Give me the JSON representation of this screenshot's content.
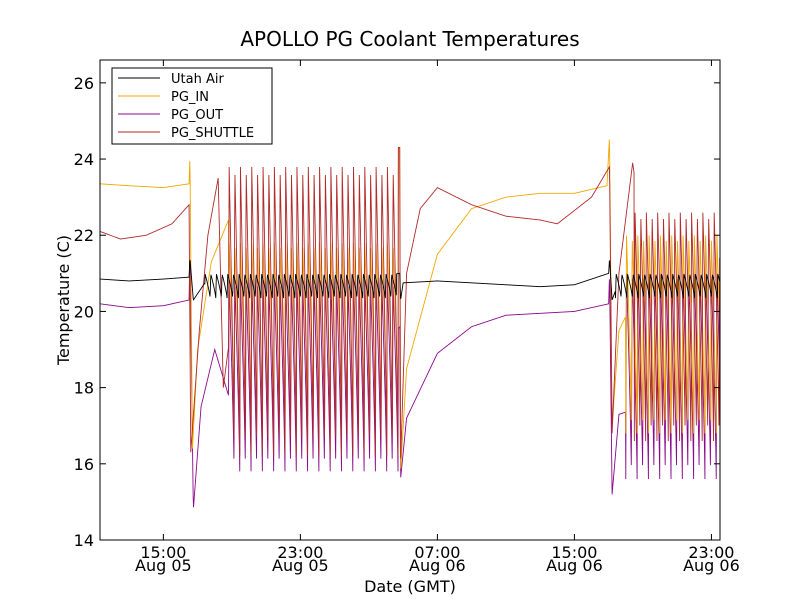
{
  "chart_data": {
    "type": "line",
    "title": "APOLLO PG Coolant Temperatures",
    "xlabel": "Date (GMT)",
    "ylabel": "Temperature (C)",
    "xlim_hours": [
      11.3,
      47.5
    ],
    "ylim": [
      14,
      26.6
    ],
    "y_ticks": [
      14,
      16,
      18,
      20,
      22,
      24,
      26
    ],
    "x_ticks": [
      {
        "hour": 15,
        "time": "15:00",
        "date": "Aug 05"
      },
      {
        "hour": 23,
        "time": "23:00",
        "date": "Aug 05"
      },
      {
        "hour": 31,
        "time": "07:00",
        "date": "Aug 06"
      },
      {
        "hour": 39,
        "time": "15:00",
        "date": "Aug 06"
      },
      {
        "hour": 47,
        "time": "23:00",
        "date": "Aug 06"
      }
    ],
    "x_hour_reference": "hours since Aug 05 00:00 GMT",
    "legend_position": "top-left",
    "grid": false,
    "colors": {
      "utah_air": "#000000",
      "pg_in": "#f0a800",
      "pg_out": "#8b0a8c",
      "pg_shuttle": "#b22a2a"
    },
    "series": [
      {
        "name": "Utah Air",
        "key": "utah_air",
        "points": [
          [
            11.3,
            20.85
          ],
          [
            13,
            20.8
          ],
          [
            15,
            20.85
          ],
          [
            16.5,
            20.9
          ],
          [
            16.55,
            21.4
          ],
          [
            16.75,
            20.3
          ],
          [
            17.5,
            20.8
          ],
          [
            18.8,
            20.95
          ],
          [
            20,
            20.9
          ],
          [
            22,
            20.9
          ],
          [
            24,
            20.9
          ],
          [
            26,
            20.9
          ],
          [
            28,
            20.95
          ],
          [
            28.8,
            21.0
          ],
          [
            28.85,
            20.3
          ],
          [
            29,
            20.75
          ],
          [
            31,
            20.8
          ],
          [
            33,
            20.75
          ],
          [
            35,
            20.7
          ],
          [
            37,
            20.65
          ],
          [
            39,
            20.7
          ],
          [
            41,
            21.0
          ],
          [
            41.05,
            21.4
          ],
          [
            41.2,
            20.3
          ],
          [
            41.6,
            20.8
          ],
          [
            43,
            20.95
          ],
          [
            45,
            20.9
          ],
          [
            47.5,
            20.9
          ]
        ],
        "cycling": [
          {
            "from": 17.4,
            "to": 28.6,
            "period": 0.33,
            "min": 20.35,
            "max": 20.98
          },
          {
            "from": 41.4,
            "to": 47.5,
            "period": 0.33,
            "min": 20.35,
            "max": 20.98
          }
        ]
      },
      {
        "name": "PG_IN",
        "key": "pg_in",
        "points": [
          [
            11.3,
            23.35
          ],
          [
            13,
            23.3
          ],
          [
            15,
            23.25
          ],
          [
            16.5,
            23.35
          ],
          [
            16.55,
            24.1
          ],
          [
            16.7,
            16.4
          ],
          [
            17,
            19.0
          ],
          [
            17.8,
            21.3
          ],
          [
            18.8,
            22.4
          ],
          [
            20,
            21.5
          ],
          [
            22,
            20.8
          ],
          [
            24,
            20.9
          ],
          [
            26,
            22.2
          ],
          [
            27,
            23.3
          ],
          [
            28.8,
            24.3
          ],
          [
            28.85,
            15.8
          ],
          [
            29.2,
            18.5
          ],
          [
            31,
            21.5
          ],
          [
            33,
            22.7
          ],
          [
            35,
            23.0
          ],
          [
            37,
            23.1
          ],
          [
            39,
            23.1
          ],
          [
            40.9,
            23.3
          ],
          [
            41.05,
            24.6
          ],
          [
            41.2,
            17.0
          ],
          [
            41.6,
            19.5
          ],
          [
            43,
            20.8
          ],
          [
            45,
            20.8
          ],
          [
            47.5,
            20.8
          ]
        ],
        "cycling": [
          {
            "from": 18.8,
            "to": 28.7,
            "period": 0.33,
            "min": 17.2,
            "max": 21.8
          },
          {
            "from": 42.0,
            "to": 47.5,
            "period": 0.33,
            "min": 16.8,
            "max": 22.0
          }
        ]
      },
      {
        "name": "PG_OUT",
        "key": "pg_out",
        "points": [
          [
            11.3,
            20.2
          ],
          [
            13,
            20.1
          ],
          [
            15,
            20.15
          ],
          [
            16.5,
            20.3
          ],
          [
            16.55,
            21.5
          ],
          [
            16.75,
            14.8
          ],
          [
            17.2,
            17.5
          ],
          [
            18,
            19.0
          ],
          [
            19,
            17.5
          ],
          [
            21,
            16.7
          ],
          [
            23,
            16.8
          ],
          [
            25,
            17.0
          ],
          [
            27,
            18.5
          ],
          [
            28.8,
            19.6
          ],
          [
            28.85,
            15.6
          ],
          [
            29.2,
            17.2
          ],
          [
            31,
            18.9
          ],
          [
            33,
            19.6
          ],
          [
            35,
            19.9
          ],
          [
            37,
            19.95
          ],
          [
            39,
            20.0
          ],
          [
            41,
            20.2
          ],
          [
            41.05,
            21.0
          ],
          [
            41.2,
            15.2
          ],
          [
            41.6,
            17.3
          ],
          [
            43,
            17.5
          ],
          [
            45,
            17.5
          ],
          [
            47.5,
            17.4
          ]
        ],
        "cycling": [
          {
            "from": 18.8,
            "to": 28.7,
            "period": 0.33,
            "min": 15.8,
            "max": 20.8
          },
          {
            "from": 42.0,
            "to": 47.5,
            "period": 0.33,
            "min": 15.6,
            "max": 21.0
          }
        ]
      },
      {
        "name": "PG_SHUTTLE",
        "key": "pg_shuttle",
        "points": [
          [
            11.3,
            22.1
          ],
          [
            12.5,
            21.9
          ],
          [
            14,
            22.0
          ],
          [
            15.5,
            22.3
          ],
          [
            16.5,
            22.8
          ],
          [
            16.6,
            16.3
          ],
          [
            17.1,
            19.5
          ],
          [
            17.6,
            22.0
          ],
          [
            18.2,
            23.5
          ],
          [
            18.5,
            18.0
          ],
          [
            19.5,
            21.5
          ],
          [
            21,
            21.6
          ],
          [
            23,
            21.5
          ],
          [
            25,
            22.3
          ],
          [
            26.2,
            24.5
          ],
          [
            27,
            24.4
          ],
          [
            28.8,
            24.3
          ],
          [
            28.85,
            16.0
          ],
          [
            29.2,
            21.0
          ],
          [
            30,
            22.7
          ],
          [
            31,
            23.25
          ],
          [
            33,
            22.8
          ],
          [
            35,
            22.5
          ],
          [
            37,
            22.4
          ],
          [
            38,
            22.3
          ],
          [
            40,
            23.0
          ],
          [
            41.05,
            23.8
          ],
          [
            41.2,
            16.8
          ],
          [
            41.6,
            21.0
          ],
          [
            42.4,
            23.9
          ],
          [
            43,
            22.0
          ],
          [
            45,
            21.5
          ],
          [
            47.5,
            21.3
          ]
        ],
        "cycling": [
          {
            "from": 18.8,
            "to": 28.7,
            "period": 0.33,
            "min": 16.2,
            "max": 23.8
          },
          {
            "from": 42.5,
            "to": 47.5,
            "period": 0.33,
            "min": 16.6,
            "max": 22.6
          }
        ]
      }
    ]
  }
}
